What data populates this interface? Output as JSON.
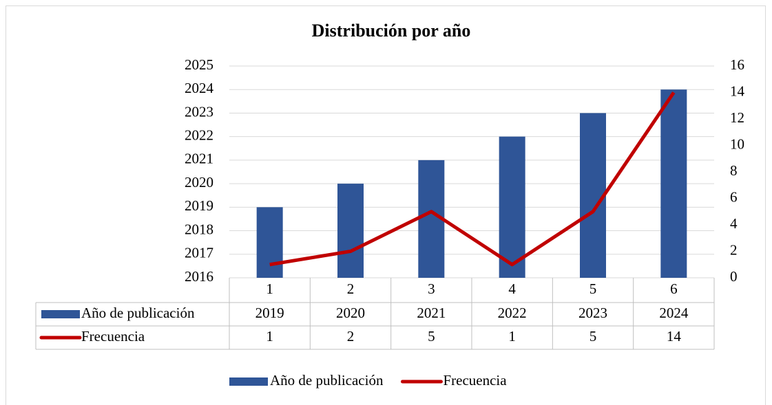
{
  "chart_data": {
    "type": "bar",
    "title": "Distribución por año",
    "categories": [
      "1",
      "2",
      "3",
      "4",
      "5",
      "6"
    ],
    "series": [
      {
        "name": "Año de publicación",
        "color": "#2f5597",
        "values": [
          2019,
          2020,
          2021,
          2022,
          2023,
          2024
        ]
      },
      {
        "name": "Frecuencia",
        "color": "#c00000",
        "type": "line",
        "axis": "y2",
        "values": [
          1,
          2,
          5,
          1,
          5,
          14
        ]
      }
    ],
    "ylim": [
      2016,
      2025
    ],
    "yticks": [
      2016,
      2017,
      2018,
      2019,
      2020,
      2021,
      2022,
      2023,
      2024,
      2025
    ],
    "y2lim": [
      0,
      16
    ],
    "y2ticks": [
      0,
      2,
      4,
      6,
      8,
      10,
      12,
      14,
      16
    ],
    "grid": true,
    "data_table": true,
    "legend": "bottom"
  }
}
